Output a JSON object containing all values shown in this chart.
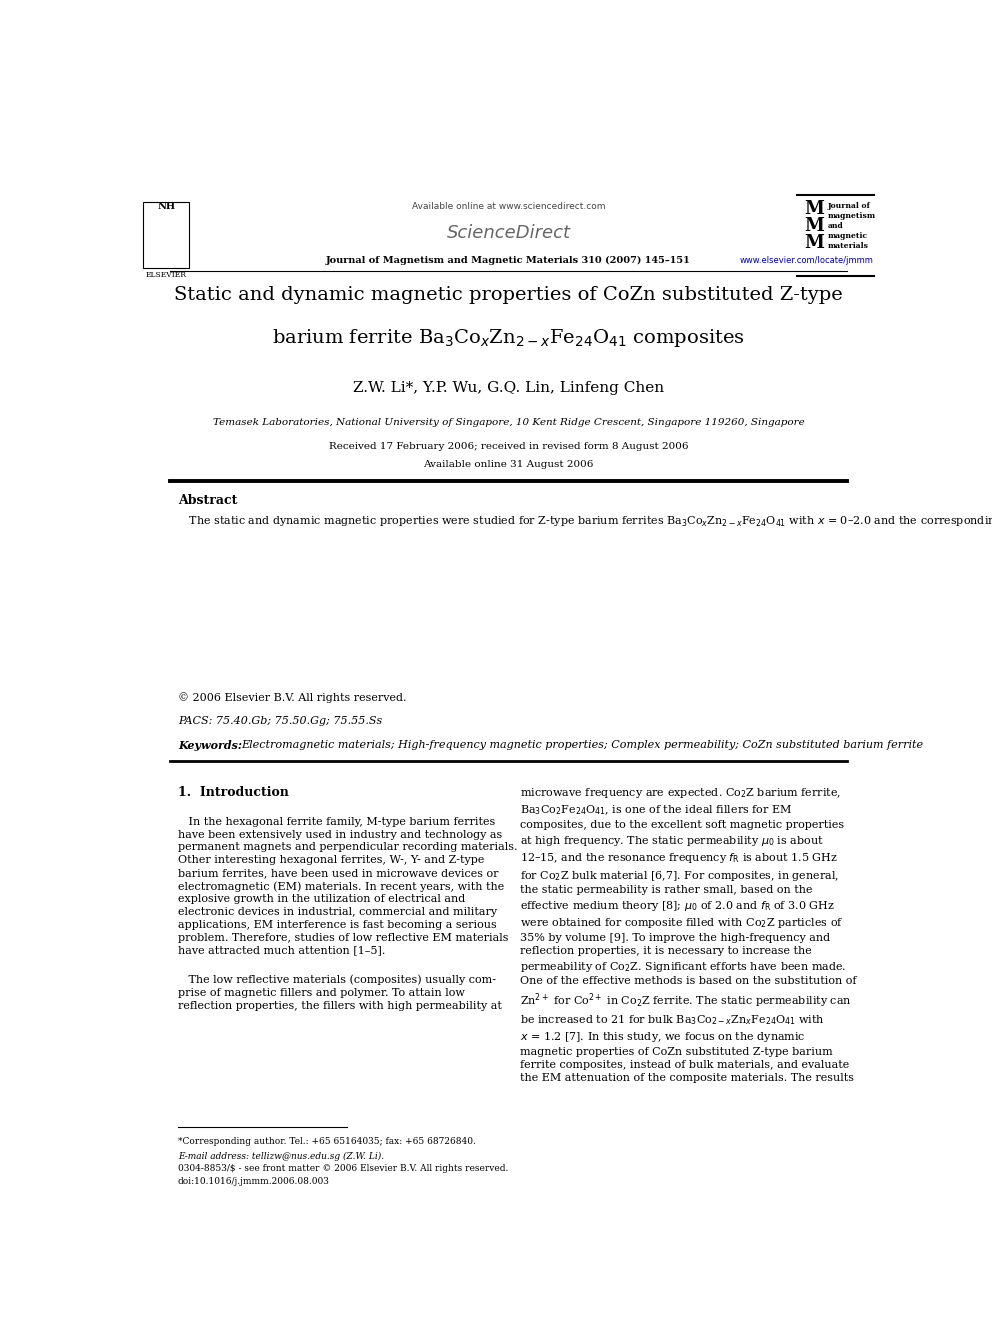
{
  "page_width": 9.92,
  "page_height": 13.23,
  "background_color": "#ffffff",
  "header_available": "Available online at www.sciencedirect.com",
  "header_sciencedirect": "ScienceDirect",
  "header_journal_line": "Journal of Magnetism and Magnetic Materials 310 (2007) 145–151",
  "header_journal_right": "Journal of\nmagnetism\nand\nmagnetic\nmaterials",
  "header_url": "www.elsevier.com/locate/jmmm",
  "elsevier_text": "ELSEVIER",
  "title_line1": "Static and dynamic magnetic properties of CoZn substituted Z-type",
  "title_line2": "barium ferrite Ba$_3$Co$_x$Zn$_{2-x}$Fe$_{24}$O$_{41}$ composites",
  "authors": "Z.W. Li*, Y.P. Wu, G.Q. Lin, Linfeng Chen",
  "affiliation": "Temasek Laboratories, National University of Singapore, 10 Kent Ridge Crescent, Singapore 119260, Singapore",
  "received": "Received 17 February 2006; received in revised form 8 August 2006",
  "available_online": "Available online 31 August 2006",
  "abstract_label": "Abstract",
  "copyright": "© 2006 Elsevier B.V. All rights reserved.",
  "pacs": "PACS: 75.40.Gb; 75.50.Gg; 75.55.Ss",
  "keywords_label": "Keywords:",
  "keywords_text": "Electromagnetic materials; High-frequency magnetic properties; Complex permeability; CoZn substituted barium ferrite",
  "section1_label": "1.  Introduction",
  "footnote_star": "*Corresponding author. Tel.: +65 65164035; fax: +65 68726840.",
  "footnote_email": "E-mail address: tellizw@nus.edu.sg (Z.W. Li).",
  "footer_issn": "0304-8853/$ - see front matter © 2006 Elsevier B.V. All rights reserved.",
  "footer_doi": "doi:10.1016/j.jmmm.2006.08.003",
  "lm": 0.07,
  "rm": 0.93
}
